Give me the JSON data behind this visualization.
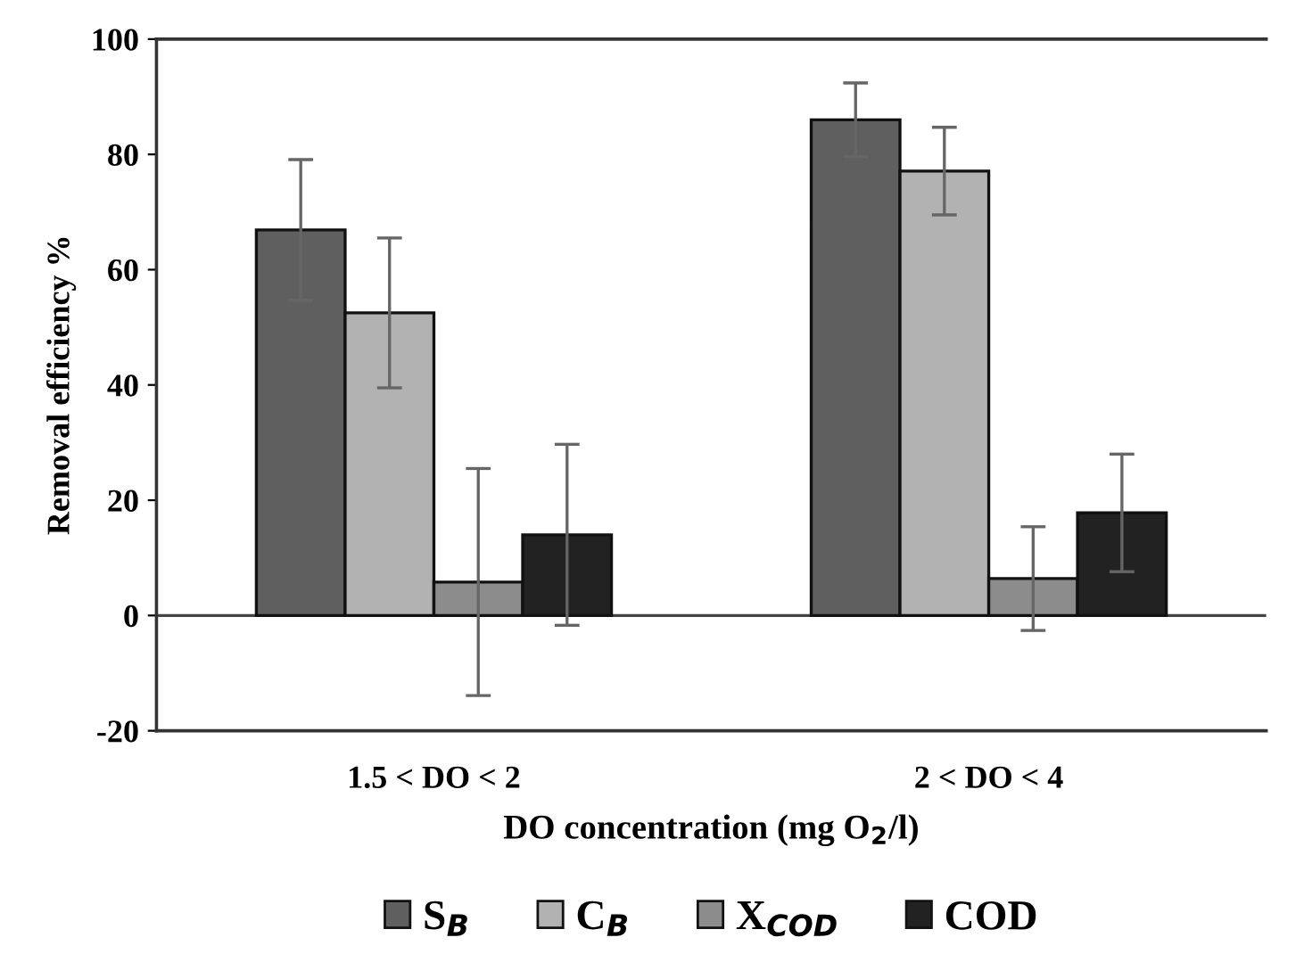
{
  "chart_data": {
    "type": "bar",
    "xlabel": "DO concentration (mg O$_{2}$/l)",
    "ylabel": "Removal efficiency %",
    "categories": [
      "1.5 < DO < 2",
      "2 < DO < 4"
    ],
    "series": [
      {
        "name": "S$_{B}$",
        "color": "#5f5f5f",
        "values": [
          66.9,
          86.0
        ],
        "errors": [
          12.2,
          6.4
        ]
      },
      {
        "name": "C$_{B}$",
        "color": "#b2b2b2",
        "values": [
          52.5,
          77.1
        ],
        "errors": [
          13.0,
          7.6
        ]
      },
      {
        "name": "X$_{COD}$",
        "color": "#8c8c8c",
        "values": [
          5.8,
          6.4
        ],
        "errors": [
          19.7,
          9.0
        ]
      },
      {
        "name": "COD",
        "color": "#222222",
        "values": [
          14.0,
          17.8
        ],
        "errors": [
          15.7,
          10.2
        ]
      }
    ],
    "ylim": [
      -20,
      100
    ],
    "yticks": [
      -20,
      0,
      20,
      40,
      60,
      80,
      100
    ],
    "ref_lines": [
      {
        "axis": "y",
        "value": 0,
        "color": "#444444"
      }
    ],
    "grid": false,
    "legend": "bottom"
  }
}
